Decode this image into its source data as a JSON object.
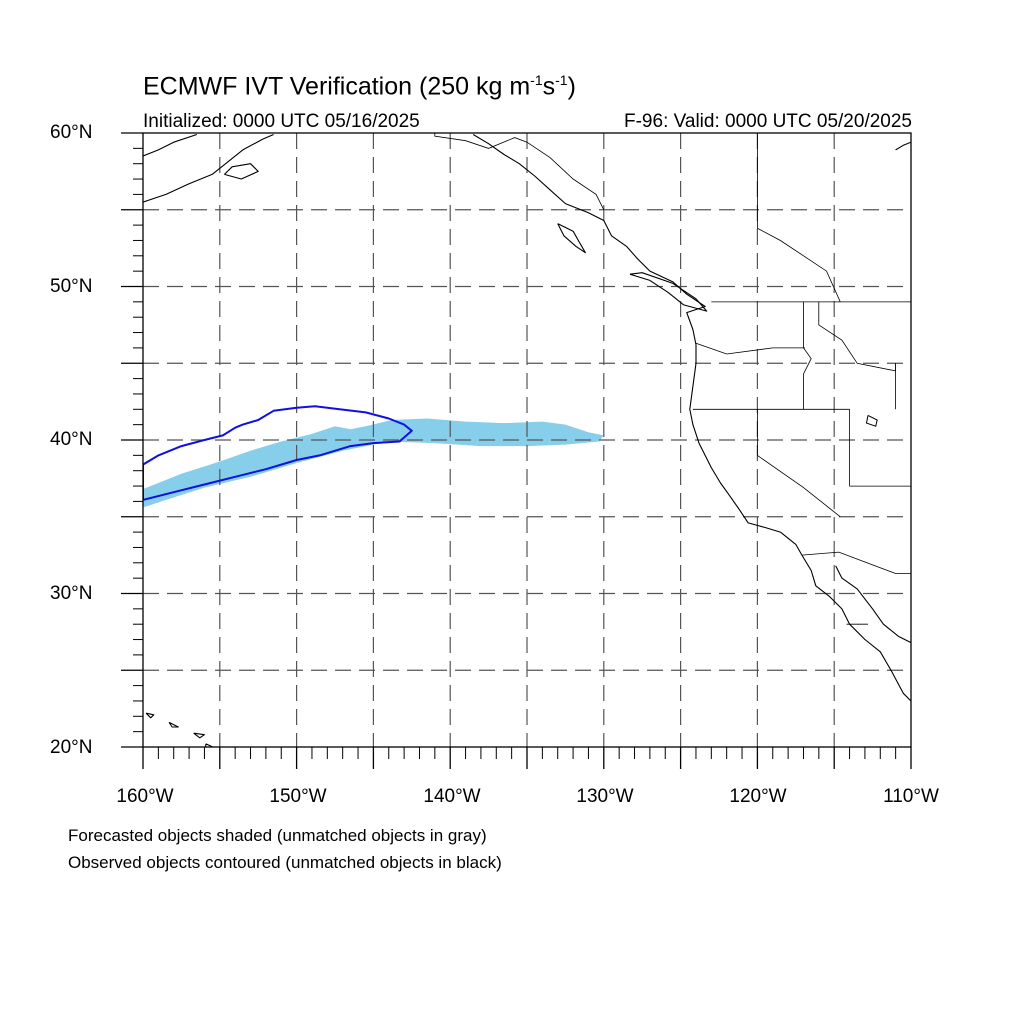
{
  "title": {
    "prefix": "ECMWF IVT Verification (250 kg m",
    "exp1": "-1",
    "mid": "s",
    "exp2": "-1",
    "suffix": ")"
  },
  "initialized": "Initialized: 0000 UTC 05/16/2025",
  "valid": "F-96: Valid: 0000 UTC 05/20/2025",
  "lat_labels": [
    "60°N",
    "50°N",
    "40°N",
    "30°N",
    "20°N"
  ],
  "lon_labels": [
    "160°W",
    "150°W",
    "140°W",
    "130°W",
    "120°W",
    "110°W"
  ],
  "notes": [
    "Forecasted objects shaded (unmatched objects in gray)",
    "Observed objects contoured (unmatched objects in black)"
  ],
  "colors": {
    "forecast_fill": "#87ceeb",
    "observed_contour": "#1010e0",
    "coastline": "#000000",
    "grid": "#555555"
  },
  "map_extent": {
    "lon_min": -160,
    "lon_max": -110,
    "lat_min": 20,
    "lat_max": 60
  },
  "forecast_object": {
    "name": "forecast IVT object",
    "polygon": [
      [
        -160.0,
        36.8
      ],
      [
        -157.5,
        37.8
      ],
      [
        -155.0,
        38.6
      ],
      [
        -153.0,
        39.3
      ],
      [
        -151.0,
        39.9
      ],
      [
        -149.0,
        40.4
      ],
      [
        -147.5,
        40.9
      ],
      [
        -146.5,
        40.7
      ],
      [
        -145.5,
        40.9
      ],
      [
        -143.8,
        41.3
      ],
      [
        -141.5,
        41.4
      ],
      [
        -139.0,
        41.2
      ],
      [
        -136.5,
        41.1
      ],
      [
        -134.0,
        41.2
      ],
      [
        -132.5,
        41.0
      ],
      [
        -131.0,
        40.5
      ],
      [
        -130.0,
        40.3
      ],
      [
        -130.3,
        39.9
      ],
      [
        -132.5,
        39.7
      ],
      [
        -135.0,
        39.6
      ],
      [
        -138.0,
        39.6
      ],
      [
        -141.0,
        39.8
      ],
      [
        -144.0,
        39.9
      ],
      [
        -147.0,
        39.3
      ],
      [
        -150.0,
        38.5
      ],
      [
        -153.0,
        37.6
      ],
      [
        -156.0,
        36.9
      ],
      [
        -158.5,
        36.1
      ],
      [
        -160.0,
        35.6
      ]
    ]
  },
  "observed_object": {
    "name": "observed IVT object",
    "polygon": [
      [
        -160.0,
        38.4
      ],
      [
        -159.0,
        39.0
      ],
      [
        -157.5,
        39.6
      ],
      [
        -156.0,
        40.0
      ],
      [
        -154.8,
        40.3
      ],
      [
        -154.0,
        40.8
      ],
      [
        -153.5,
        41.0
      ],
      [
        -152.5,
        41.3
      ],
      [
        -151.5,
        41.9
      ],
      [
        -150.0,
        42.1
      ],
      [
        -148.8,
        42.2
      ],
      [
        -147.2,
        42.0
      ],
      [
        -145.5,
        41.8
      ],
      [
        -144.0,
        41.4
      ],
      [
        -143.0,
        41.0
      ],
      [
        -142.5,
        40.6
      ],
      [
        -143.3,
        39.9
      ],
      [
        -145.0,
        39.8
      ],
      [
        -146.5,
        39.6
      ],
      [
        -148.5,
        39.0
      ],
      [
        -150.0,
        38.7
      ],
      [
        -152.0,
        38.1
      ],
      [
        -154.0,
        37.6
      ],
      [
        -156.0,
        37.1
      ],
      [
        -158.0,
        36.6
      ],
      [
        -160.0,
        36.1
      ]
    ]
  },
  "coastlines": [
    {
      "name": "north america west coast",
      "points": [
        [
          -138.5,
          59.9
        ],
        [
          -137.5,
          59.3
        ],
        [
          -136.5,
          58.6
        ],
        [
          -135.5,
          58.0
        ],
        [
          -134.5,
          57.2
        ],
        [
          -133.5,
          56.3
        ],
        [
          -132.5,
          55.4
        ],
        [
          -131.0,
          54.8
        ],
        [
          -130.0,
          54.3
        ],
        [
          -129.5,
          53.3
        ],
        [
          -128.5,
          52.6
        ],
        [
          -127.8,
          51.8
        ],
        [
          -127.0,
          51.0
        ],
        [
          -125.5,
          50.3
        ],
        [
          -124.6,
          49.5
        ],
        [
          -123.4,
          48.7
        ],
        [
          -124.6,
          48.3
        ],
        [
          -124.2,
          47.2
        ],
        [
          -124.0,
          46.2
        ],
        [
          -124.0,
          45.0
        ],
        [
          -124.2,
          43.5
        ],
        [
          -124.4,
          42.0
        ],
        [
          -124.2,
          41.0
        ],
        [
          -123.8,
          39.8
        ],
        [
          -123.0,
          38.2
        ],
        [
          -122.4,
          37.2
        ],
        [
          -121.9,
          36.5
        ],
        [
          -121.2,
          35.5
        ],
        [
          -120.6,
          34.6
        ],
        [
          -119.5,
          34.3
        ],
        [
          -118.5,
          34.0
        ],
        [
          -117.5,
          33.2
        ],
        [
          -117.1,
          32.5
        ],
        [
          -116.5,
          31.5
        ],
        [
          -116.2,
          30.5
        ],
        [
          -115.3,
          29.8
        ],
        [
          -114.5,
          29.0
        ],
        [
          -114.0,
          28.0
        ],
        [
          -113.0,
          27.0
        ],
        [
          -112.0,
          26.2
        ],
        [
          -111.3,
          25.0
        ],
        [
          -110.5,
          23.5
        ],
        [
          -110.0,
          23.0
        ]
      ]
    },
    {
      "name": "gulf of california east coast",
      "points": [
        [
          -114.9,
          31.8
        ],
        [
          -114.5,
          31.0
        ],
        [
          -113.5,
          30.3
        ],
        [
          -112.5,
          29.0
        ],
        [
          -111.8,
          28.0
        ],
        [
          -110.8,
          27.2
        ],
        [
          -110.0,
          26.8
        ]
      ]
    },
    {
      "name": "vancouver island",
      "points": [
        [
          -128.3,
          50.8
        ],
        [
          -127.0,
          50.4
        ],
        [
          -125.8,
          49.6
        ],
        [
          -124.8,
          48.8
        ],
        [
          -123.3,
          48.4
        ],
        [
          -124.0,
          49.2
        ],
        [
          -125.5,
          50.2
        ],
        [
          -127.5,
          50.9
        ],
        [
          -128.3,
          50.8
        ]
      ]
    },
    {
      "name": "haida gwaii",
      "points": [
        [
          -133.0,
          54.1
        ],
        [
          -132.0,
          53.6
        ],
        [
          -131.6,
          52.9
        ],
        [
          -131.2,
          52.2
        ],
        [
          -131.8,
          52.6
        ],
        [
          -132.6,
          53.3
        ],
        [
          -133.0,
          54.1
        ]
      ]
    },
    {
      "name": "alaska south coast",
      "points": [
        [
          -160.0,
          55.5
        ],
        [
          -158.5,
          56.0
        ],
        [
          -157.0,
          56.7
        ],
        [
          -155.5,
          57.3
        ],
        [
          -154.5,
          58.1
        ],
        [
          -153.5,
          58.9
        ],
        [
          -152.2,
          59.6
        ],
        [
          -151.5,
          59.9
        ]
      ]
    },
    {
      "name": "kodiak island",
      "points": [
        [
          -154.7,
          57.3
        ],
        [
          -153.6,
          57.0
        ],
        [
          -152.5,
          57.5
        ],
        [
          -153.0,
          58.0
        ],
        [
          -154.2,
          57.8
        ],
        [
          -154.7,
          57.3
        ]
      ]
    },
    {
      "name": "alaska upper coast",
      "points": [
        [
          -160.0,
          58.5
        ],
        [
          -159.0,
          58.9
        ],
        [
          -158.0,
          59.4
        ],
        [
          -156.5,
          59.9
        ]
      ]
    },
    {
      "name": "hudson bay coast",
      "points": [
        [
          -110.0,
          59.4
        ],
        [
          -110.5,
          59.2
        ],
        [
          -111.0,
          58.9
        ]
      ]
    },
    {
      "name": "hawaii big island",
      "points": [
        [
          -155.9,
          20.2
        ],
        [
          -155.0,
          19.8
        ],
        [
          -155.5,
          19.3
        ],
        [
          -156.0,
          19.6
        ],
        [
          -155.9,
          20.2
        ]
      ]
    },
    {
      "name": "maui",
      "points": [
        [
          -156.7,
          20.9
        ],
        [
          -156.0,
          20.8
        ],
        [
          -156.3,
          20.6
        ],
        [
          -156.7,
          20.9
        ]
      ]
    },
    {
      "name": "oahu",
      "points": [
        [
          -158.3,
          21.6
        ],
        [
          -157.7,
          21.3
        ],
        [
          -158.1,
          21.3
        ],
        [
          -158.3,
          21.6
        ]
      ]
    },
    {
      "name": "kauai",
      "points": [
        [
          -159.8,
          22.2
        ],
        [
          -159.3,
          22.1
        ],
        [
          -159.5,
          21.9
        ],
        [
          -159.8,
          22.2
        ]
      ]
    }
  ],
  "borders": [
    {
      "name": "canada us border",
      "points": [
        [
          -123.0,
          49.0
        ],
        [
          -110.0,
          49.0
        ]
      ]
    },
    {
      "name": "alaska canada border",
      "points": [
        [
          -141.0,
          60.0
        ],
        [
          -141.0,
          59.8
        ],
        [
          -139.0,
          59.5
        ],
        [
          -137.5,
          59.0
        ],
        [
          -135.8,
          59.7
        ],
        [
          -135.0,
          59.4
        ],
        [
          -133.5,
          58.4
        ],
        [
          -132.0,
          57.0
        ],
        [
          -130.5,
          56.0
        ],
        [
          -130.0,
          55.0
        ]
      ]
    },
    {
      "name": "bc alberta border",
      "points": [
        [
          -120.0,
          60.0
        ],
        [
          -120.0,
          53.8
        ],
        [
          -118.5,
          53.0
        ],
        [
          -117.0,
          52.0
        ],
        [
          -115.5,
          51.0
        ],
        [
          -114.6,
          49.0
        ]
      ]
    },
    {
      "name": "washington oregon border",
      "points": [
        [
          -124.0,
          46.3
        ],
        [
          -122.0,
          45.6
        ],
        [
          -119.0,
          46.0
        ],
        [
          -116.9,
          46.0
        ]
      ]
    },
    {
      "name": "idaho washington oregon border",
      "points": [
        [
          -117.0,
          49.0
        ],
        [
          -117.0,
          46.0
        ],
        [
          -116.5,
          45.3
        ],
        [
          -117.0,
          44.3
        ],
        [
          -117.0,
          42.0
        ]
      ]
    },
    {
      "name": "oregon california nevada border",
      "points": [
        [
          -124.2,
          42.0
        ],
        [
          -114.0,
          42.0
        ]
      ]
    },
    {
      "name": "california nevada border",
      "points": [
        [
          -120.0,
          42.0
        ],
        [
          -120.0,
          39.0
        ],
        [
          -117.0,
          36.9
        ],
        [
          -114.6,
          35.0
        ]
      ]
    },
    {
      "name": "nevada utah border",
      "points": [
        [
          -114.0,
          42.0
        ],
        [
          -114.0,
          37.0
        ]
      ]
    },
    {
      "name": "utah arizona border",
      "points": [
        [
          -114.0,
          37.0
        ],
        [
          -110.0,
          37.0
        ]
      ]
    },
    {
      "name": "idaho montana border",
      "points": [
        [
          -116.0,
          49.0
        ],
        [
          -116.0,
          47.5
        ],
        [
          -114.5,
          46.5
        ],
        [
          -113.5,
          45.0
        ],
        [
          -111.0,
          44.5
        ],
        [
          -111.0,
          45.0
        ]
      ]
    },
    {
      "name": "idaho wyoming border",
      "points": [
        [
          -111.0,
          45.0
        ],
        [
          -111.0,
          42.0
        ]
      ]
    },
    {
      "name": "us mexico border",
      "points": [
        [
          -117.1,
          32.5
        ],
        [
          -114.7,
          32.7
        ],
        [
          -111.0,
          31.3
        ],
        [
          -110.0,
          31.3
        ]
      ]
    },
    {
      "name": "baja border",
      "points": [
        [
          -114.2,
          28.0
        ],
        [
          -112.8,
          28.0
        ]
      ]
    }
  ],
  "lakes": [
    {
      "name": "great salt lake",
      "points": [
        [
          -112.8,
          41.6
        ],
        [
          -112.2,
          41.3
        ],
        [
          -112.3,
          40.9
        ],
        [
          -112.9,
          41.1
        ],
        [
          -112.8,
          41.6
        ]
      ]
    }
  ]
}
